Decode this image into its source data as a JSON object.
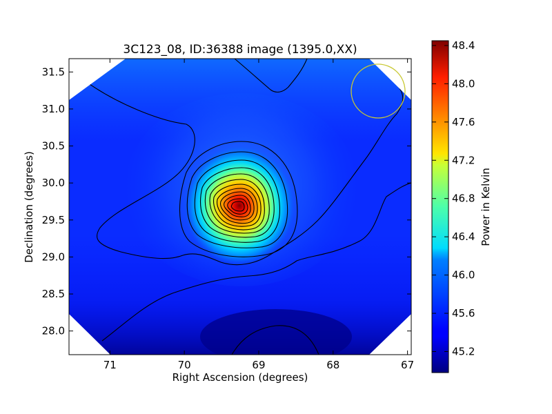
{
  "chart_data": {
    "type": "heatmap",
    "title": "3C123_08, ID:36388 image (1395.0,XX)",
    "xlabel": "Right Ascension (degrees)",
    "ylabel": "Declination (degrees)",
    "xlim": [
      71.55,
      66.95
    ],
    "ylim": [
      27.68,
      31.68
    ],
    "x_inverted": true,
    "x_ticks": [
      "71",
      "70",
      "69",
      "68",
      "67"
    ],
    "y_ticks": [
      "28.0",
      "28.5",
      "29.0",
      "29.5",
      "30.0",
      "30.5",
      "31.0",
      "31.5"
    ],
    "grid": false,
    "colorbar": {
      "label": "Power in Kelvin",
      "colormap": "jet",
      "range": [
        44.98,
        48.45
      ],
      "ticks": [
        "45.2",
        "45.6",
        "46.0",
        "46.4",
        "46.8",
        "47.2",
        "47.6",
        "48.0",
        "48.4"
      ]
    },
    "peak": {
      "ra": 69.32,
      "dec": 29.68,
      "value": 48.4
    },
    "background_value": 45.3,
    "contours": "black, about 15 levels around the peak",
    "beam_marker": {
      "ra": 67.42,
      "dec": 31.22,
      "color": "#c8c832"
    },
    "masked_corners_color": "#ffffff"
  }
}
